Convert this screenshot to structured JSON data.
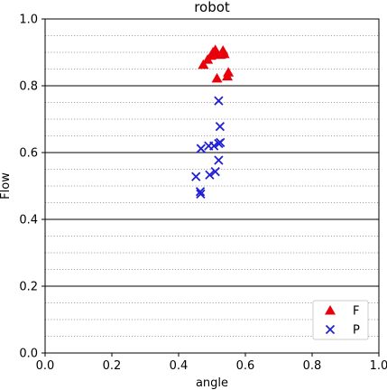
{
  "chart_data": {
    "type": "scatter",
    "title": "robot",
    "xlabel": "angle",
    "ylabel": "Flow",
    "xlim": [
      0.0,
      1.0
    ],
    "ylim": [
      0.0,
      1.0
    ],
    "x_ticks": [
      "0.0",
      "0.2",
      "0.4",
      "0.6",
      "0.8",
      "1.0"
    ],
    "y_ticks": [
      "0.0",
      "0.2",
      "0.4",
      "0.6",
      "0.8",
      "1.0"
    ],
    "grid": {
      "major_y": "solid",
      "minor_y": "dotted"
    },
    "legend_position": "bottom-right",
    "series": [
      {
        "name": "F",
        "marker": "triangle",
        "color": "#e8000b",
        "points": [
          {
            "x": 0.474,
            "y": 0.863
          },
          {
            "x": 0.487,
            "y": 0.878
          },
          {
            "x": 0.497,
            "y": 0.89
          },
          {
            "x": 0.503,
            "y": 0.9
          },
          {
            "x": 0.51,
            "y": 0.907
          },
          {
            "x": 0.518,
            "y": 0.893
          },
          {
            "x": 0.526,
            "y": 0.893
          },
          {
            "x": 0.533,
            "y": 0.905
          },
          {
            "x": 0.537,
            "y": 0.895
          },
          {
            "x": 0.515,
            "y": 0.822
          },
          {
            "x": 0.546,
            "y": 0.828
          },
          {
            "x": 0.549,
            "y": 0.84
          }
        ]
      },
      {
        "name": "P",
        "marker": "x",
        "color": "#1f1fd6",
        "points": [
          {
            "x": 0.52,
            "y": 0.755
          },
          {
            "x": 0.524,
            "y": 0.678
          },
          {
            "x": 0.52,
            "y": 0.627
          },
          {
            "x": 0.525,
            "y": 0.63
          },
          {
            "x": 0.506,
            "y": 0.62
          },
          {
            "x": 0.49,
            "y": 0.62
          },
          {
            "x": 0.467,
            "y": 0.612
          },
          {
            "x": 0.52,
            "y": 0.577
          },
          {
            "x": 0.51,
            "y": 0.543
          },
          {
            "x": 0.493,
            "y": 0.533
          },
          {
            "x": 0.452,
            "y": 0.528
          },
          {
            "x": 0.465,
            "y": 0.483
          },
          {
            "x": 0.466,
            "y": 0.476
          }
        ]
      }
    ]
  }
}
